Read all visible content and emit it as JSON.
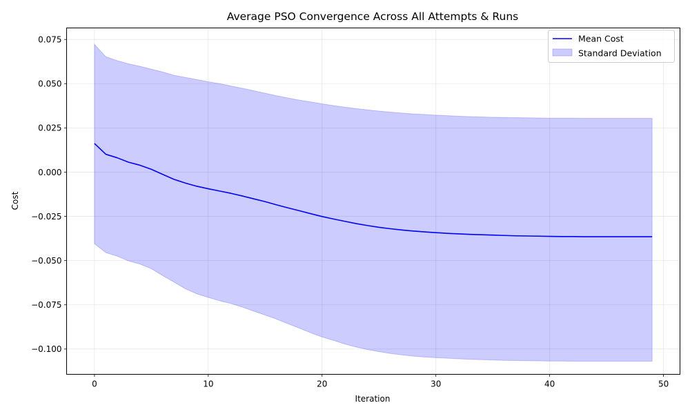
{
  "chart_data": {
    "type": "line",
    "title": "Average PSO Convergence Across All Attempts & Runs",
    "xlabel": "Iteration",
    "ylabel": "Cost",
    "xlim": [
      -2.45,
      51.45
    ],
    "ylim": [
      -0.1143,
      0.0815
    ],
    "xticks": [
      0,
      10,
      20,
      30,
      40,
      50
    ],
    "xtick_labels": [
      "0",
      "10",
      "20",
      "30",
      "40",
      "50"
    ],
    "yticks": [
      -0.1,
      -0.075,
      -0.05,
      -0.025,
      0.0,
      0.025,
      0.05,
      0.075
    ],
    "ytick_labels": [
      "−0.100",
      "−0.075",
      "−0.050",
      "−0.025",
      "0.000",
      "0.025",
      "0.050",
      "0.075"
    ],
    "grid": true,
    "legend_position": "top-right",
    "x": [
      0,
      1,
      2,
      3,
      4,
      5,
      6,
      7,
      8,
      9,
      10,
      11,
      12,
      13,
      14,
      15,
      16,
      17,
      18,
      19,
      20,
      21,
      22,
      23,
      24,
      25,
      26,
      27,
      28,
      29,
      30,
      31,
      32,
      33,
      34,
      35,
      36,
      37,
      38,
      39,
      40,
      41,
      42,
      43,
      44,
      45,
      46,
      47,
      48,
      49
    ],
    "series": [
      {
        "name": "Mean Cost",
        "kind": "line",
        "color": "#0000ff",
        "values": [
          0.0162,
          0.0101,
          0.0081,
          0.0056,
          0.0039,
          0.0016,
          -0.0013,
          -0.0041,
          -0.0062,
          -0.008,
          -0.0094,
          -0.0107,
          -0.012,
          -0.0135,
          -0.0151,
          -0.0167,
          -0.0185,
          -0.0202,
          -0.0218,
          -0.0235,
          -0.0251,
          -0.0265,
          -0.0278,
          -0.0291,
          -0.0302,
          -0.0312,
          -0.032,
          -0.0327,
          -0.0333,
          -0.0338,
          -0.0342,
          -0.0346,
          -0.0349,
          -0.0352,
          -0.0354,
          -0.0356,
          -0.0358,
          -0.036,
          -0.0361,
          -0.0362,
          -0.0363,
          -0.0364,
          -0.0364,
          -0.0365,
          -0.0365,
          -0.0365,
          -0.0365,
          -0.0365,
          -0.0365,
          -0.0365
        ]
      },
      {
        "name": "Standard Deviation",
        "kind": "band",
        "color": "#0000ff",
        "fill_opacity": 0.2,
        "upper": [
          0.0722,
          0.0652,
          0.063,
          0.0612,
          0.0598,
          0.0582,
          0.0566,
          0.0547,
          0.0535,
          0.0523,
          0.0511,
          0.05,
          0.0487,
          0.0474,
          0.046,
          0.0446,
          0.0432,
          0.0419,
          0.0407,
          0.0397,
          0.0386,
          0.0376,
          0.0367,
          0.0359,
          0.0352,
          0.0345,
          0.0339,
          0.0334,
          0.0329,
          0.0326,
          0.0322,
          0.0319,
          0.0316,
          0.0314,
          0.0312,
          0.031,
          0.0309,
          0.0308,
          0.0307,
          0.0306,
          0.0305,
          0.0305,
          0.0305,
          0.0304,
          0.0304,
          0.0304,
          0.0304,
          0.0304,
          0.0304,
          0.0304
        ],
        "lower": [
          -0.0405,
          -0.0455,
          -0.0475,
          -0.0502,
          -0.052,
          -0.0546,
          -0.0585,
          -0.0622,
          -0.066,
          -0.0688,
          -0.0708,
          -0.0727,
          -0.0743,
          -0.0763,
          -0.0786,
          -0.0808,
          -0.0831,
          -0.0857,
          -0.0882,
          -0.0908,
          -0.0932,
          -0.0951,
          -0.0972,
          -0.0989,
          -0.1003,
          -0.1015,
          -0.1025,
          -0.1033,
          -0.104,
          -0.1045,
          -0.1049,
          -0.1052,
          -0.1055,
          -0.1058,
          -0.106,
          -0.1062,
          -0.1064,
          -0.1065,
          -0.1066,
          -0.1067,
          -0.1068,
          -0.1068,
          -0.1069,
          -0.1069,
          -0.1069,
          -0.1069,
          -0.1069,
          -0.1069,
          -0.1069,
          -0.1069
        ]
      }
    ]
  }
}
